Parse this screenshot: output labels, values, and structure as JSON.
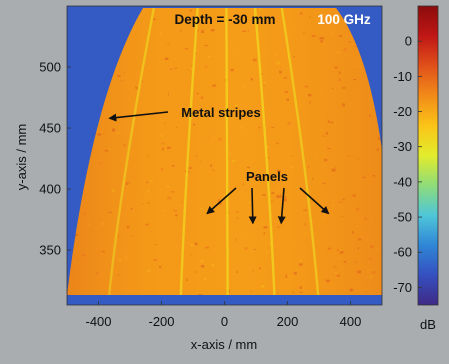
{
  "chart_data": {
    "type": "heatmap",
    "title": "Depth = -30 mm",
    "frequency_label": "100 GHz",
    "xlabel": "x-axis / mm",
    "ylabel": "y-axis / mm",
    "xlim": [
      -500,
      500
    ],
    "ylim": [
      305,
      550
    ],
    "x_ticks": [
      -400,
      -200,
      0,
      200,
      400
    ],
    "y_ticks": [
      350,
      400,
      450,
      500
    ],
    "colorbar": {
      "label": "dB",
      "range": [
        -75,
        10
      ],
      "ticks": [
        0,
        -10,
        -20,
        -30,
        -40,
        -50,
        -60,
        -70
      ],
      "colors": [
        "#3f2a85",
        "#3550c0",
        "#2f86d6",
        "#4fc6d8",
        "#8edc7a",
        "#e2ec2c",
        "#fbc417",
        "#f28b19",
        "#e0511a",
        "#c01616",
        "#8c0c0c"
      ]
    },
    "background_level_db": -65,
    "object_level_db": -18,
    "metal_stripe_level_db": -27,
    "metal_stripes_x_mm": [
      -370,
      -140,
      10,
      160,
      300
    ],
    "annotations": [
      {
        "text": "Metal stripes",
        "target": [
          -365,
          458
        ]
      },
      {
        "text": "Panels",
        "targets": [
          [
            -55,
            380
          ],
          [
            90,
            372
          ],
          [
            180,
            372
          ],
          [
            330,
            380
          ]
        ]
      }
    ]
  }
}
